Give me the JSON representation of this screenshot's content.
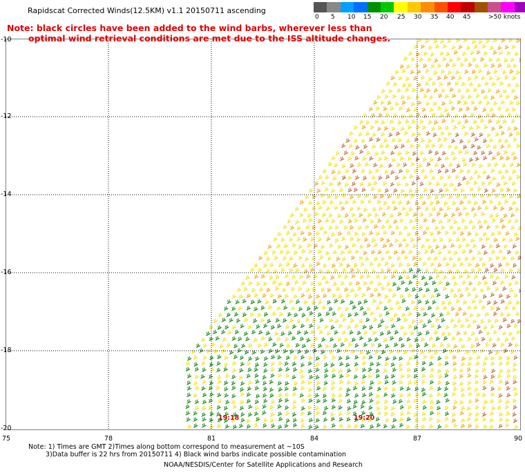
{
  "header": {
    "title": "Rapidscat Corrected Winds(12.5KM) v1.1 20150711 ascending",
    "note_line1": "Note: black circles have been added to the wind barbs, wherever less than",
    "note_line2": "optimal wind retrieval conditions are met due to the ISS altitude changes."
  },
  "legend": {
    "tick_labels": [
      "0",
      "5",
      "10",
      "15",
      "20",
      "25",
      "30",
      "35",
      "40",
      "45",
      ">50 knots"
    ],
    "colors": [
      "#555555",
      "#888888",
      "#00a0ff",
      "#0070ff",
      "#009000",
      "#00c800",
      "#ffff00",
      "#ffc800",
      "#ff8c00",
      "#ff5000",
      "#ff0000",
      "#c00000",
      "#a05000",
      "#c8508c",
      "#ff00ff",
      "#a000c0",
      "#7000ff"
    ]
  },
  "axes": {
    "lat_labels": [
      "-10",
      "-12",
      "-14",
      "-16",
      "-18",
      "-20"
    ],
    "lon_labels": [
      "75",
      "78",
      "81",
      "84",
      "87",
      "90"
    ]
  },
  "time_labels": {
    "left": "19:18",
    "right": "19:20"
  },
  "footer": {
    "line1": "Note: 1) Times are GMT 2)Times along bottom correspond to measurement at ~10S",
    "line2": "3)Data buffer is 22 hrs from 20150711 4) Black wind barbs indicate possible contamination",
    "credit": "NOAA/NESDIS/Center for Satellite Applications and Research"
  },
  "wind_field": {
    "speed_units": "knots",
    "dominant_speed_range": [
      20,
      30
    ],
    "colors": {
      "green": "#008000",
      "yellow": "#f0e000",
      "orange": "#f0a000",
      "brown": "#b8602a"
    }
  }
}
